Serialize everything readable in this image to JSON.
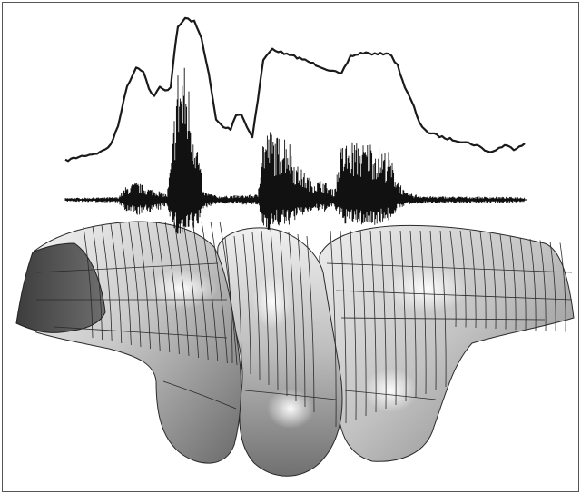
{
  "figure": {
    "colors": {
      "background": "#ffffff",
      "frame": "#555555",
      "trace": "#1a1a1a",
      "waveform": "#111111",
      "surface_light": "#ececec",
      "surface_mid": "#b9b9b9",
      "surface_dark": "#5a5a5a",
      "mesh_line": "#2a2a2a"
    }
  }
}
